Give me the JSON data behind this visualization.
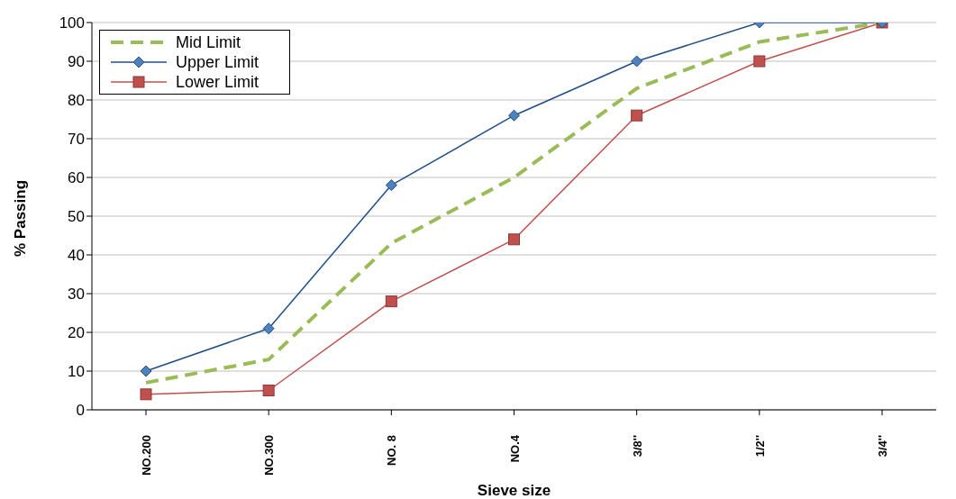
{
  "chart_data": {
    "type": "line",
    "xlabel": "Sieve size",
    "ylabel": "% Passing",
    "categories": [
      "NO.200",
      "NO.300",
      "NO. 8",
      "NO.4",
      "3/8''",
      "1/2''",
      "3/4''"
    ],
    "ylim": [
      0,
      100
    ],
    "yticks": [
      0,
      10,
      20,
      30,
      40,
      50,
      60,
      70,
      80,
      90,
      100
    ],
    "grid": "y",
    "legend": "top left",
    "series": [
      {
        "name": "Mid Limit",
        "color": "#9bbb59",
        "values": [
          7,
          13,
          43,
          60,
          83,
          95,
          100
        ],
        "line_style": "dashed",
        "marker": "none"
      },
      {
        "name": "Upper Limit",
        "color": "#1f4e89",
        "values": [
          10,
          21,
          58,
          76,
          90,
          100,
          100
        ],
        "line_style": "solid",
        "marker": "diamond"
      },
      {
        "name": "Lower Limit",
        "color": "#c0504d",
        "values": [
          4,
          5,
          28,
          44,
          76,
          90,
          100
        ],
        "line_style": "solid",
        "marker": "square"
      }
    ]
  }
}
